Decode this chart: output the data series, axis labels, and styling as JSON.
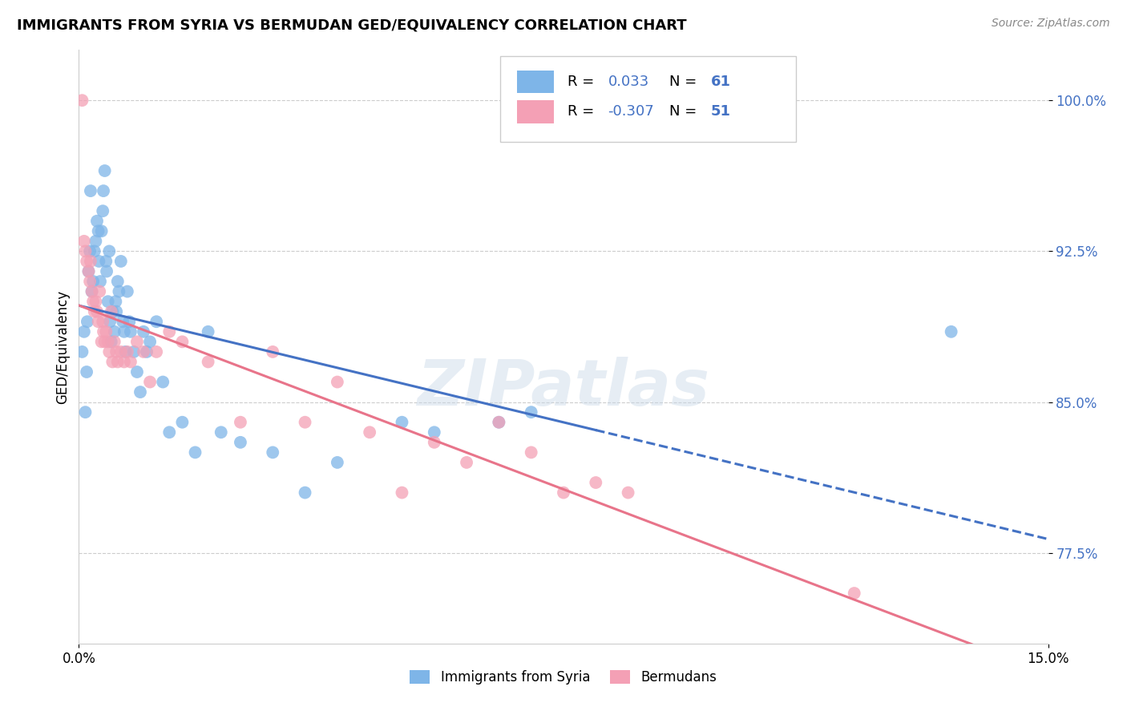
{
  "title": "IMMIGRANTS FROM SYRIA VS BERMUDAN GED/EQUIVALENCY CORRELATION CHART",
  "source": "Source: ZipAtlas.com",
  "ylabel": "GED/Equivalency",
  "y_ticks": [
    77.5,
    85.0,
    92.5,
    100.0
  ],
  "y_tick_labels": [
    "77.5%",
    "85.0%",
    "92.5%",
    "100.0%"
  ],
  "xmin": 0.0,
  "xmax": 15.0,
  "ymin": 73.0,
  "ymax": 102.5,
  "legend_r_blue": "0.033",
  "legend_n_blue": "61",
  "legend_r_pink": "-0.307",
  "legend_n_pink": "51",
  "legend_label_blue": "Immigrants from Syria",
  "legend_label_pink": "Bermudans",
  "blue_color": "#7EB5E8",
  "pink_color": "#F4A0B5",
  "blue_line_color": "#4472C4",
  "pink_line_color": "#E8748A",
  "blue_scatter_x": [
    0.05,
    0.08,
    0.1,
    0.12,
    0.13,
    0.15,
    0.17,
    0.18,
    0.2,
    0.22,
    0.24,
    0.26,
    0.28,
    0.3,
    0.31,
    0.33,
    0.35,
    0.37,
    0.38,
    0.4,
    0.42,
    0.43,
    0.45,
    0.47,
    0.48,
    0.5,
    0.52,
    0.55,
    0.57,
    0.58,
    0.6,
    0.62,
    0.65,
    0.68,
    0.7,
    0.72,
    0.75,
    0.78,
    0.8,
    0.85,
    0.9,
    0.95,
    1.0,
    1.05,
    1.1,
    1.2,
    1.3,
    1.4,
    1.6,
    1.8,
    2.0,
    2.2,
    2.5,
    3.0,
    3.5,
    4.0,
    5.0,
    5.5,
    6.5,
    7.0,
    13.5
  ],
  "blue_scatter_y": [
    87.5,
    88.5,
    84.5,
    86.5,
    89.0,
    91.5,
    92.5,
    95.5,
    90.5,
    91.0,
    92.5,
    93.0,
    94.0,
    93.5,
    92.0,
    91.0,
    93.5,
    94.5,
    95.5,
    96.5,
    92.0,
    91.5,
    90.0,
    92.5,
    89.0,
    88.0,
    89.5,
    88.5,
    90.0,
    89.5,
    91.0,
    90.5,
    92.0,
    89.0,
    88.5,
    87.5,
    90.5,
    89.0,
    88.5,
    87.5,
    86.5,
    85.5,
    88.5,
    87.5,
    88.0,
    89.0,
    86.0,
    83.5,
    84.0,
    82.5,
    88.5,
    83.5,
    83.0,
    82.5,
    80.5,
    82.0,
    84.0,
    83.5,
    84.0,
    84.5,
    88.5
  ],
  "pink_scatter_x": [
    0.05,
    0.08,
    0.1,
    0.12,
    0.15,
    0.17,
    0.18,
    0.2,
    0.22,
    0.24,
    0.26,
    0.28,
    0.3,
    0.32,
    0.35,
    0.37,
    0.38,
    0.4,
    0.42,
    0.45,
    0.47,
    0.5,
    0.52,
    0.55,
    0.58,
    0.6,
    0.65,
    0.7,
    0.75,
    0.8,
    0.9,
    1.0,
    1.1,
    1.2,
    1.4,
    1.6,
    2.0,
    2.5,
    3.0,
    3.5,
    4.0,
    4.5,
    5.0,
    5.5,
    6.0,
    6.5,
    7.0,
    7.5,
    8.0,
    8.5,
    12.0
  ],
  "pink_scatter_y": [
    100.0,
    93.0,
    92.5,
    92.0,
    91.5,
    91.0,
    92.0,
    90.5,
    90.0,
    89.5,
    90.0,
    89.5,
    89.0,
    90.5,
    88.0,
    89.0,
    88.5,
    88.0,
    88.5,
    88.0,
    87.5,
    89.5,
    87.0,
    88.0,
    87.5,
    87.0,
    87.5,
    87.0,
    87.5,
    87.0,
    88.0,
    87.5,
    86.0,
    87.5,
    88.5,
    88.0,
    87.0,
    84.0,
    87.5,
    84.0,
    86.0,
    83.5,
    80.5,
    83.0,
    82.0,
    84.0,
    82.5,
    80.5,
    81.0,
    80.5,
    75.5
  ],
  "watermark": "ZIPatlas",
  "dashed_start_x": 8.0
}
